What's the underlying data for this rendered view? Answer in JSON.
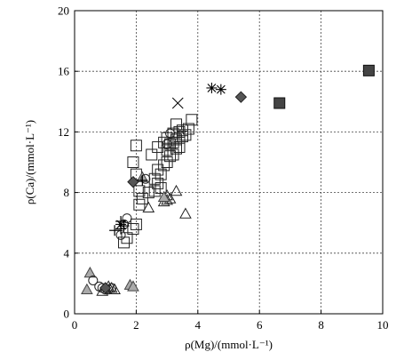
{
  "chart_data": {
    "type": "scatter",
    "title": "",
    "xlabel": "ρ(Mg)/(mmol·L⁻¹)",
    "ylabel": "ρ(Ca)/(mmol·L⁻¹)",
    "xlim": [
      0,
      10
    ],
    "ylim": [
      0,
      20
    ],
    "xticks": [
      "0",
      "2",
      "4",
      "6",
      "8",
      "10"
    ],
    "yticks": [
      "0",
      "4",
      "8",
      "12",
      "16",
      "20"
    ],
    "grid": true,
    "legend": "none",
    "series": [
      {
        "marker": "open-square",
        "points": [
          [
            1.6,
            4.7
          ],
          [
            1.7,
            5.0
          ],
          [
            1.9,
            5.6
          ],
          [
            2.0,
            5.9
          ],
          [
            2.1,
            7.2
          ],
          [
            2.2,
            7.6
          ],
          [
            2.1,
            8.1
          ],
          [
            2.4,
            8.0
          ],
          [
            2.6,
            8.1
          ],
          [
            2.8,
            8.3
          ],
          [
            2.7,
            8.6
          ],
          [
            2.6,
            8.9
          ],
          [
            2.8,
            9.2
          ],
          [
            2.7,
            9.5
          ],
          [
            2.9,
            9.8
          ],
          [
            3.0,
            10.0
          ],
          [
            3.1,
            10.4
          ],
          [
            3.0,
            10.8
          ],
          [
            3.2,
            10.5
          ],
          [
            3.3,
            10.9
          ],
          [
            3.4,
            11.0
          ],
          [
            3.1,
            11.2
          ],
          [
            3.2,
            11.3
          ],
          [
            3.3,
            11.5
          ],
          [
            3.4,
            11.6
          ],
          [
            3.5,
            11.7
          ],
          [
            3.6,
            11.8
          ],
          [
            3.2,
            11.9
          ],
          [
            3.4,
            12.0
          ],
          [
            3.5,
            12.1
          ],
          [
            3.7,
            12.2
          ],
          [
            3.3,
            12.5
          ],
          [
            3.8,
            12.8
          ],
          [
            2.0,
            11.1
          ],
          [
            1.9,
            10.0
          ],
          [
            2.0,
            9.2
          ],
          [
            2.5,
            10.5
          ],
          [
            2.7,
            11.0
          ],
          [
            2.9,
            11.3
          ],
          [
            3.0,
            11.6
          ]
        ]
      },
      {
        "marker": "open-triangle",
        "points": [
          [
            2.9,
            7.4
          ],
          [
            3.0,
            7.5
          ],
          [
            3.1,
            7.6
          ],
          [
            3.0,
            7.8
          ],
          [
            3.3,
            8.1
          ],
          [
            3.6,
            6.6
          ],
          [
            2.4,
            7.0
          ],
          [
            1.2,
            1.7
          ],
          [
            0.9,
            1.5
          ],
          [
            1.1,
            1.8
          ],
          [
            1.3,
            1.6
          ]
        ]
      },
      {
        "marker": "gray-triangle",
        "points": [
          [
            0.5,
            2.7
          ],
          [
            0.4,
            1.6
          ],
          [
            1.8,
            1.9
          ],
          [
            1.9,
            1.8
          ],
          [
            2.2,
            9.0
          ],
          [
            2.9,
            7.7
          ]
        ]
      },
      {
        "marker": "open-circle",
        "points": [
          [
            0.6,
            2.2
          ],
          [
            0.8,
            1.8
          ],
          [
            0.9,
            1.7
          ],
          [
            1.0,
            1.6
          ],
          [
            1.1,
            1.6
          ],
          [
            1.2,
            1.7
          ],
          [
            1.6,
            5.9
          ],
          [
            1.7,
            6.3
          ],
          [
            2.3,
            8.9
          ],
          [
            3.1,
            11.9
          ],
          [
            3.0,
            11.2
          ],
          [
            1.5,
            5.2
          ]
        ]
      },
      {
        "marker": "plus",
        "points": [
          [
            1.3,
            5.5
          ],
          [
            1.5,
            6.1
          ],
          [
            1.6,
            5.8
          ],
          [
            2.2,
            8.8
          ],
          [
            1.5,
            5.6
          ]
        ]
      },
      {
        "marker": "asterisk",
        "points": [
          [
            4.45,
            14.9
          ],
          [
            4.75,
            14.8
          ],
          [
            1.5,
            5.9
          ]
        ]
      },
      {
        "marker": "cross",
        "points": [
          [
            3.35,
            13.9
          ]
        ]
      },
      {
        "marker": "filled-diamond",
        "points": [
          [
            5.4,
            14.3
          ],
          [
            1.0,
            1.7
          ],
          [
            1.9,
            8.7
          ]
        ]
      },
      {
        "marker": "filled-square",
        "points": [
          [
            6.65,
            13.9
          ],
          [
            9.55,
            16.05
          ]
        ]
      }
    ]
  }
}
